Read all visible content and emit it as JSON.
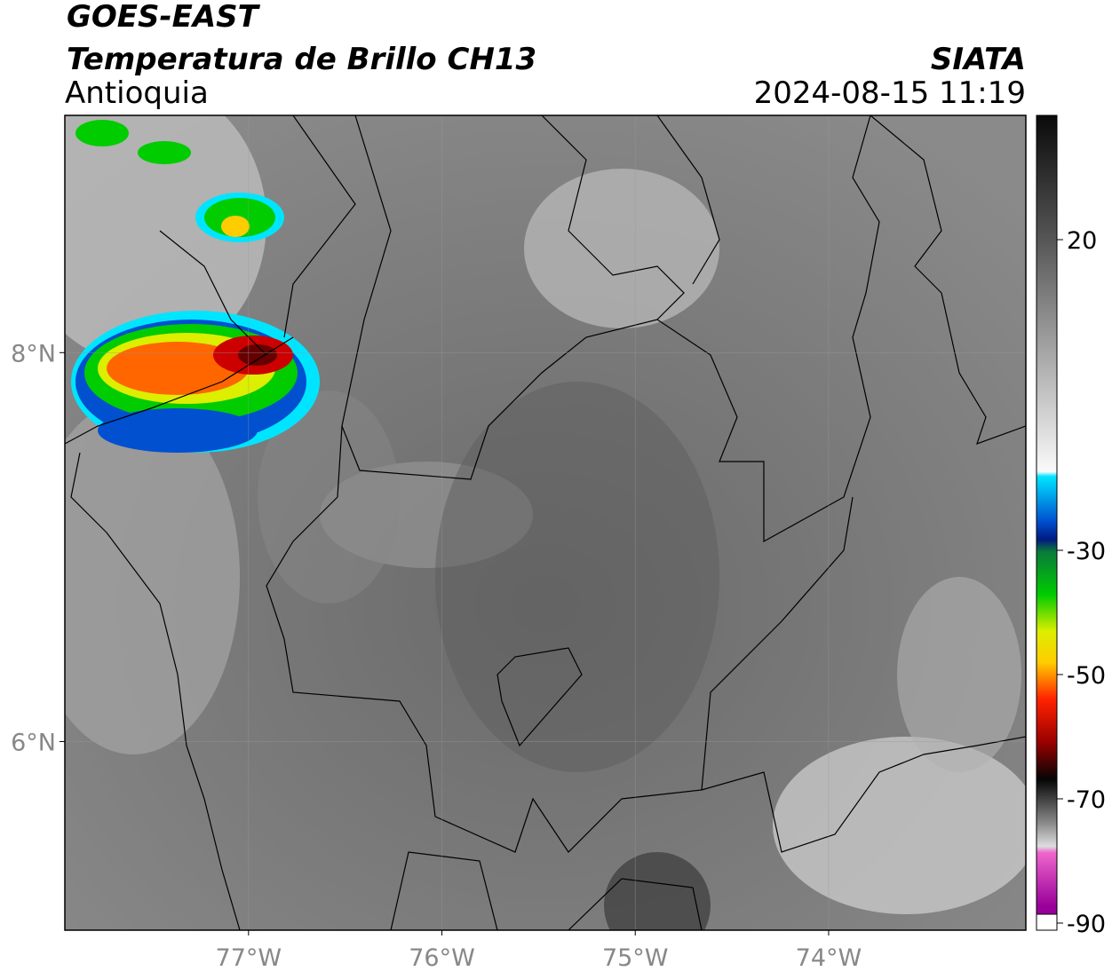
{
  "header": {
    "title": "GOES-EAST",
    "subtitle": "Temperatura de Brillo CH13",
    "source": "SIATA",
    "region": "Antioquia",
    "datetime": "2024-08-15 11:19"
  },
  "map": {
    "xlim": [
      -77.95,
      -72.98
    ],
    "ylim": [
      5.03,
      9.22
    ],
    "xticks": [
      {
        "value": -77,
        "label": "77°W"
      },
      {
        "value": -76,
        "label": "76°W"
      },
      {
        "value": -75,
        "label": "75°W"
      },
      {
        "value": -74,
        "label": "74°W"
      }
    ],
    "yticks": [
      {
        "value": 6,
        "label": "6°N"
      },
      {
        "value": 8,
        "label": "8°N"
      }
    ],
    "grid": true
  },
  "colorbar": {
    "lim": [
      -90,
      40
    ],
    "ticks": [
      20,
      -30,
      -50,
      -70,
      -90
    ]
  }
}
